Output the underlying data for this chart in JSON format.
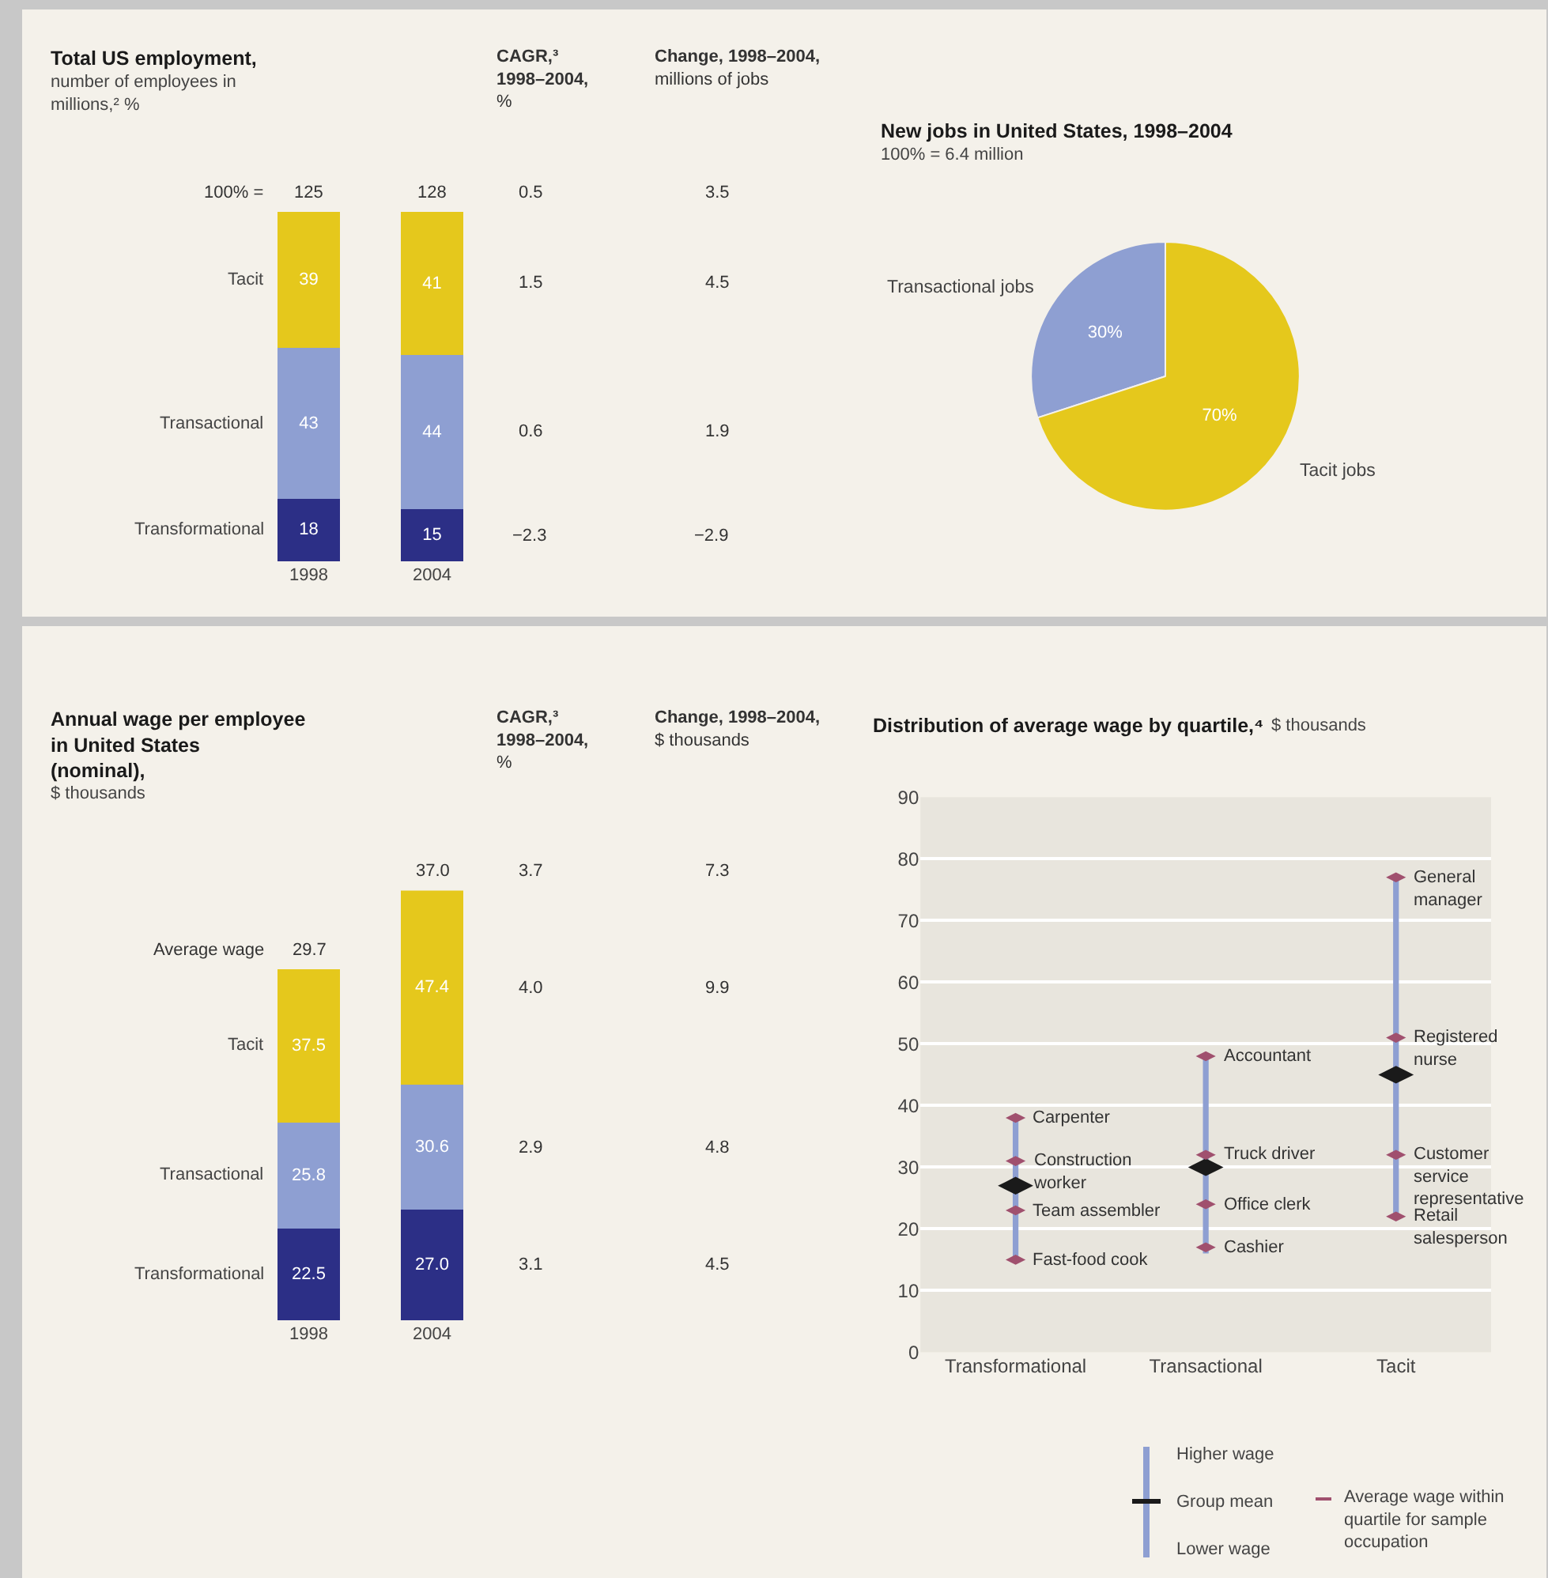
{
  "chart_data": [
    {
      "type": "bar",
      "title": "Total US employment,",
      "subtitle": "number of employees in millions,² %",
      "categories": [
        "1998",
        "2004"
      ],
      "stacked": true,
      "data_labels": true,
      "series": [
        {
          "name": "Transformational",
          "color": "#2c2f86",
          "values": [
            18,
            15
          ]
        },
        {
          "name": "Transactional",
          "color": "#8e9fd2",
          "values": [
            43,
            44
          ]
        },
        {
          "name": "Tacit",
          "color": "#e5c81c",
          "values": [
            39,
            41
          ]
        }
      ],
      "annotations": [
        "100% =",
        "125",
        "128",
        "CAGR,³ 1998–2004, %",
        "Change, 1998–2004, millions of jobs",
        "0.5",
        "3.5",
        "1.5",
        "4.5",
        "0.6",
        "1.9",
        "−2.3",
        "−2.9"
      ]
    },
    {
      "type": "pie",
      "title": "New jobs in United States, 1998–2004",
      "subtitle": "100% = 6.4 million",
      "categories": [
        "Transactional jobs",
        "Tacit jobs"
      ],
      "values": [
        30,
        70
      ],
      "colors": [
        "#8e9fd2",
        "#e5c81c"
      ],
      "value_labels": [
        "30%",
        "70%"
      ]
    },
    {
      "type": "bar",
      "title": "Annual wage per employee in United States (nominal),",
      "subtitle": "$ thousands",
      "categories": [
        "1998",
        "2004"
      ],
      "stacked": true,
      "series": [
        {
          "name": "Transformational",
          "color": "#2c2f86",
          "values": [
            22.5,
            27.0
          ],
          "value_labels": [
            "22.5",
            "27.0"
          ]
        },
        {
          "name": "Transactional",
          "color": "#8e9fd2",
          "values": [
            25.8,
            30.6
          ],
          "value_labels": [
            "25.8",
            "30.6"
          ]
        },
        {
          "name": "Tacit",
          "color": "#e5c81c",
          "values": [
            37.5,
            47.4
          ],
          "value_labels": [
            "37.5",
            "47.4"
          ]
        }
      ],
      "annotations": [
        "Average wage",
        "29.7",
        "37.0",
        "CAGR,³ 1998–2004, %",
        "Change, 1998–2004, $ thousands",
        "3.7",
        "7.3",
        "4.0",
        "9.9",
        "2.9",
        "4.8",
        "3.1",
        "4.5"
      ]
    },
    {
      "type": "bar",
      "title": "Distribution of average wage by quartile,⁴",
      "subtitle": "$ thousands",
      "categories": [
        "Transformational",
        "Transactional",
        "Tacit"
      ],
      "ylim": [
        0,
        90
      ],
      "yticks": [
        0,
        10,
        20,
        30,
        40,
        50,
        60,
        70,
        80,
        90
      ],
      "grid": "y",
      "series": [
        {
          "color": "#8e9fd2",
          "base": [
            15,
            16,
            22
          ],
          "values": [
            23,
            32,
            55
          ]
        },
        {
          "type": "scatter",
          "color": "#1a1a1a",
          "x": [
            "Transformational",
            "Transactional",
            "Tacit"
          ],
          "values": [
            27,
            30,
            45
          ]
        },
        {
          "type": "scatter",
          "color": "#a0506e",
          "x": [
            "Transformational",
            "Transformational",
            "Transformational",
            "Transformational",
            "Transactional",
            "Transactional",
            "Transactional",
            "Transactional",
            "Tacit",
            "Tacit",
            "Tacit",
            "Tacit"
          ],
          "values": [
            38,
            31,
            23,
            15,
            48,
            32,
            24,
            17,
            77,
            51,
            32,
            22
          ]
        }
      ],
      "annotations": [
        "Higher wage",
        "Group mean",
        "Lower wage",
        "Average wage within quartile for sample occupation",
        {
          "text": "Carpenter",
          "x": "Transformational",
          "y": 38
        },
        {
          "text": "Construction worker",
          "x": "Transformational",
          "y": 31
        },
        {
          "text": "Team assembler",
          "x": "Transformational",
          "y": 23
        },
        {
          "text": "Fast-food cook",
          "x": "Transformational",
          "y": 15
        },
        {
          "text": "Accountant",
          "x": "Transactional",
          "y": 48
        },
        {
          "text": "Truck driver",
          "x": "Transactional",
          "y": 32
        },
        {
          "text": "Office clerk",
          "x": "Transactional",
          "y": 24
        },
        {
          "text": "Cashier",
          "x": "Transactional",
          "y": 17
        },
        {
          "text": "General manager",
          "x": "Tacit",
          "y": 77
        },
        {
          "text": "Registered nurse",
          "x": "Tacit",
          "y": 51
        },
        {
          "text": "Customer service representative",
          "x": "Tacit",
          "y": 32
        },
        {
          "text": "Retail salesperson",
          "x": "Tacit",
          "y": 22
        }
      ]
    }
  ]
}
